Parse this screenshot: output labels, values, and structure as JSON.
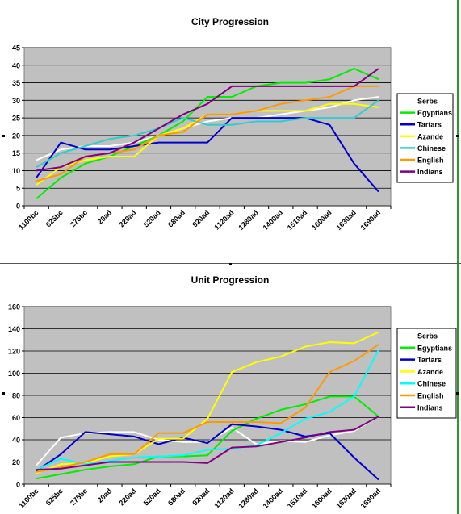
{
  "chart_data": [
    {
      "type": "line",
      "title": "City Progression",
      "xlabel": "",
      "ylabel": "",
      "ylim": [
        0,
        45
      ],
      "yticks": [
        0,
        5,
        10,
        15,
        20,
        25,
        30,
        35,
        40,
        45
      ],
      "grid": true,
      "legend": "right",
      "x": [
        "1100bc",
        "625bc",
        "275bc",
        "20ad",
        "220ad",
        "520ad",
        "680ad",
        "920ad",
        "1120ad",
        "1280ad",
        "1400ad",
        "1510ad",
        "1600ad",
        "1630ad",
        "1690ad"
      ],
      "series": [
        {
          "name": "Serbs",
          "color": "#ffffff",
          "values": [
            13,
            16,
            17,
            17,
            18,
            20,
            22,
            24,
            25,
            25,
            26,
            27,
            28,
            30,
            31
          ]
        },
        {
          "name": "Egyptians",
          "color": "#00ee00",
          "values": [
            2,
            8,
            12,
            14,
            17,
            20,
            24,
            31,
            31,
            34,
            35,
            35,
            36,
            39,
            36
          ]
        },
        {
          "name": "Tartars",
          "color": "#0000cc",
          "values": [
            8,
            18,
            16,
            16,
            17,
            18,
            18,
            18,
            25,
            25,
            25,
            25,
            23,
            12,
            4
          ]
        },
        {
          "name": "Azande",
          "color": "#ffff00",
          "values": [
            6,
            11,
            13,
            14,
            14,
            20,
            22,
            26,
            26,
            27,
            27,
            27,
            29,
            29,
            28
          ]
        },
        {
          "name": "Chinese",
          "color": "#33cccc",
          "values": [
            11,
            15,
            17,
            19,
            20,
            22,
            25,
            23,
            23,
            24,
            24,
            25,
            25,
            25,
            30
          ]
        },
        {
          "name": "English",
          "color": "#ff9900",
          "values": [
            7,
            9,
            14,
            15,
            16,
            20,
            21,
            26,
            26,
            27,
            29,
            30,
            31,
            34,
            34
          ]
        },
        {
          "name": "Indians",
          "color": "#800080",
          "values": [
            10,
            11,
            14,
            15,
            18,
            22,
            26,
            29,
            34,
            34,
            34,
            34,
            34,
            34,
            39
          ]
        }
      ]
    },
    {
      "type": "line",
      "title": "Unit Progression",
      "xlabel": "",
      "ylabel": "",
      "ylim": [
        0,
        160
      ],
      "yticks": [
        0,
        20,
        40,
        60,
        80,
        100,
        120,
        140,
        160
      ],
      "grid": true,
      "legend": "right",
      "x": [
        "1100bc",
        "625bc",
        "275bc",
        "20ad",
        "220ad",
        "520ad",
        "680ad",
        "920ad",
        "1120ad",
        "1280ad",
        "1400ad",
        "1510ad",
        "1600ad",
        "1630ad",
        "1690ad"
      ],
      "series": [
        {
          "name": "Serbs",
          "color": "#ffffff",
          "values": [
            17,
            42,
            46,
            47,
            47,
            40,
            38,
            38,
            51,
            36,
            39,
            38,
            44,
            48,
            61
          ]
        },
        {
          "name": "Egyptians",
          "color": "#00ee00",
          "values": [
            5,
            9,
            13,
            16,
            18,
            25,
            25,
            26,
            48,
            59,
            67,
            72,
            79,
            79,
            61
          ]
        },
        {
          "name": "Tartars",
          "color": "#0000cc",
          "values": [
            12,
            27,
            47,
            45,
            43,
            36,
            42,
            37,
            54,
            52,
            49,
            43,
            46,
            24,
            4
          ]
        },
        {
          "name": "Azande",
          "color": "#ffff00",
          "values": [
            10,
            18,
            19,
            25,
            27,
            41,
            41,
            59,
            101,
            110,
            115,
            124,
            128,
            127,
            137
          ]
        },
        {
          "name": "Chinese",
          "color": "#00ffff",
          "values": [
            13,
            23,
            18,
            21,
            24,
            25,
            26,
            31,
            32,
            35,
            46,
            59,
            65,
            79,
            121
          ]
        },
        {
          "name": "English",
          "color": "#ff9900",
          "values": [
            11,
            15,
            20,
            27,
            27,
            46,
            46,
            56,
            56,
            56,
            55,
            69,
            101,
            111,
            126
          ]
        },
        {
          "name": "Indians",
          "color": "#800080",
          "values": [
            13,
            14,
            17,
            20,
            20,
            20,
            20,
            19,
            33,
            34,
            38,
            42,
            47,
            49,
            61
          ]
        }
      ]
    }
  ]
}
